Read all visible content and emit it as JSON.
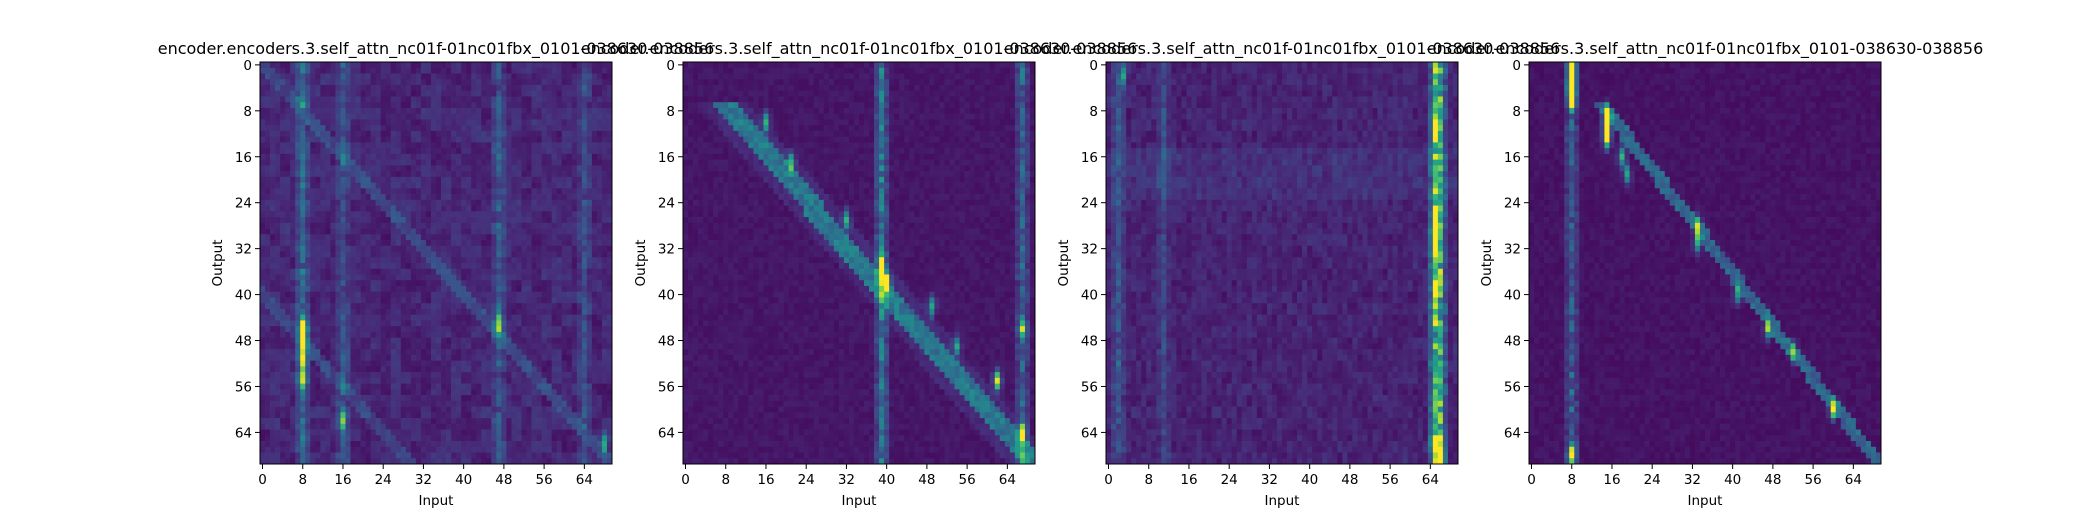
{
  "colors": {
    "low": "#440154",
    "mid": "#21918c",
    "high": "#fde725",
    "frame": "#000000"
  },
  "chart_data": [
    {
      "type": "heatmap",
      "title": "encoder.encoders.3.self_attn_nc01f-01nc01fbx_0101-038630-038856",
      "xlabel": "Input",
      "ylabel": "Output",
      "size": 70,
      "xticks": [
        0,
        8,
        16,
        24,
        32,
        40,
        48,
        56,
        64
      ],
      "yticks": [
        0,
        8,
        16,
        24,
        32,
        40,
        48,
        56,
        64
      ],
      "pattern": "diffuse",
      "peaks": [
        [
          46,
          8,
          1.0
        ],
        [
          49,
          8,
          0.75
        ],
        [
          52,
          8,
          0.6
        ],
        [
          55,
          8,
          0.55
        ],
        [
          62,
          16,
          0.55
        ],
        [
          45,
          47,
          0.6
        ],
        [
          66,
          68,
          0.5
        ]
      ],
      "columns": [
        [
          8,
          0.28
        ],
        [
          16,
          0.18
        ],
        [
          47,
          0.2
        ],
        [
          64,
          0.15
        ]
      ]
    },
    {
      "type": "heatmap",
      "title": "encoder.encoders.3.self_attn_nc01f-01nc01fbx_0101-038630-038856",
      "xlabel": "Input",
      "ylabel": "Output",
      "size": 70,
      "xticks": [
        0,
        8,
        16,
        24,
        32,
        40,
        48,
        56,
        64
      ],
      "yticks": [
        0,
        8,
        16,
        24,
        32,
        40,
        48,
        56,
        64
      ],
      "pattern": "diagonal-blocks",
      "peaks": [
        [
          10,
          16,
          0.6
        ],
        [
          17,
          21,
          0.55
        ],
        [
          27,
          32,
          0.55
        ],
        [
          35,
          39,
          0.8
        ],
        [
          38,
          40,
          0.95
        ],
        [
          42,
          49,
          0.55
        ],
        [
          49,
          54,
          0.5
        ],
        [
          55,
          62,
          0.9
        ],
        [
          64,
          67,
          0.6
        ],
        [
          46,
          67,
          0.55
        ]
      ],
      "columns": [
        [
          39,
          0.4
        ],
        [
          67,
          0.3
        ]
      ]
    },
    {
      "type": "heatmap",
      "title": "encoder.encoders.3.self_attn_nc01f-01nc01fbx_0101-038630-038856",
      "xlabel": "Input",
      "ylabel": "Output",
      "size": 70,
      "xticks": [
        0,
        8,
        16,
        24,
        32,
        40,
        48,
        56,
        64
      ],
      "yticks": [
        0,
        8,
        16,
        24,
        32,
        40,
        48,
        56,
        64
      ],
      "pattern": "right-column",
      "peaks": [
        [
          27,
          65,
          0.85
        ],
        [
          31,
          65,
          0.9
        ],
        [
          39,
          65,
          0.6
        ],
        [
          66,
          65,
          0.85
        ],
        [
          68,
          66,
          1.0
        ],
        [
          12,
          65,
          0.55
        ],
        [
          2,
          3,
          0.4
        ]
      ],
      "columns": [
        [
          65,
          0.5
        ],
        [
          66,
          0.45
        ],
        [
          2,
          0.2
        ],
        [
          11,
          0.15
        ]
      ]
    },
    {
      "type": "heatmap",
      "title": "encoder.encoders.3.self_attn_nc01f-01nc01fbx_0101-038630-038856",
      "xlabel": "Input",
      "ylabel": "Output",
      "size": 70,
      "xticks": [
        0,
        8,
        16,
        24,
        32,
        40,
        48,
        56,
        64
      ],
      "yticks": [
        0,
        8,
        16,
        24,
        32,
        40,
        48,
        56,
        64
      ],
      "pattern": "sharp-diagonal",
      "peaks": [
        [
          0,
          8,
          1.0
        ],
        [
          2,
          8,
          1.0
        ],
        [
          4,
          8,
          1.0
        ],
        [
          6,
          8,
          1.0
        ],
        [
          9,
          15,
          0.9
        ],
        [
          11,
          15,
          0.9
        ],
        [
          13,
          15,
          0.8
        ],
        [
          16,
          18,
          0.6
        ],
        [
          19,
          19,
          0.55
        ],
        [
          28,
          33,
          0.6
        ],
        [
          31,
          33,
          0.55
        ],
        [
          40,
          41,
          0.5
        ],
        [
          46,
          47,
          0.6
        ],
        [
          50,
          52,
          0.55
        ],
        [
          60,
          60,
          0.9
        ],
        [
          68,
          8,
          0.8
        ]
      ],
      "columns": [
        [
          8,
          0.3
        ]
      ]
    }
  ]
}
